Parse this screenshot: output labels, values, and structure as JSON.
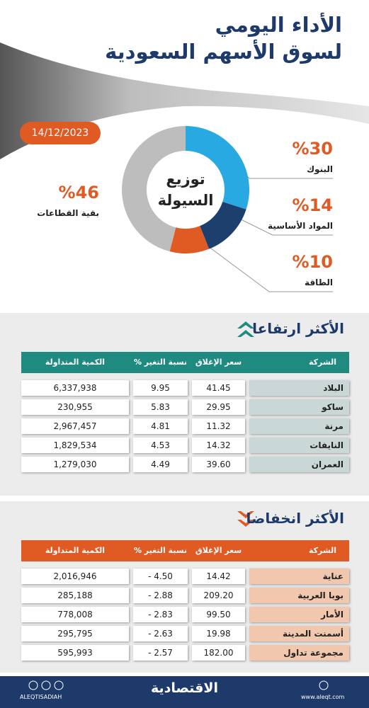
{
  "header": {
    "title_line1": "الأداء اليومي",
    "title_line2": "لسوق الأسهم السعودية",
    "date": "14/12/2023"
  },
  "chart_data": {
    "type": "pie",
    "title": "توزيع السيولة",
    "categories": [
      "البنوك",
      "المواد الأساسية",
      "الطاقة",
      "بقية القطاعات"
    ],
    "values": [
      30,
      14,
      10,
      46
    ],
    "value_labels": [
      "%30",
      "%14",
      "%10",
      "%46"
    ],
    "colors": [
      "#29a9e1",
      "#1d3f6e",
      "#e05a24",
      "#bdbdbd"
    ]
  },
  "rising": {
    "title": "الأكثر ارتفاعا",
    "header": [
      "الشركة",
      "سعر الإغلاق",
      "نسبة التغير %",
      "الكمية المتداولة"
    ],
    "rows": [
      [
        "البلاد",
        "41.45",
        "9.95",
        "6,337,938"
      ],
      [
        "ساكو",
        "29.95",
        "5.83",
        "230,955"
      ],
      [
        "مرنة",
        "11.32",
        "4.81",
        "2,967,457"
      ],
      [
        "النايفات",
        "14.32",
        "4.53",
        "1,829,534"
      ],
      [
        "العمران",
        "39.60",
        "4.49",
        "1,279,030"
      ]
    ]
  },
  "falling": {
    "title": "الأكثر انخفاضا",
    "header": [
      "الشركة",
      "سعر الإغلاق",
      "نسبة التغير %",
      "الكمية المتداولة"
    ],
    "rows": [
      [
        "عناية",
        "14.42",
        "- 4.50",
        "2,016,946"
      ],
      [
        "بوبا العربية",
        "209.20",
        "- 2.88",
        "285,188"
      ],
      [
        "الأمار",
        "99.50",
        "- 2.83",
        "778,008"
      ],
      [
        "أسمنت المدينة",
        "19.98",
        "- 2.63",
        "295,795"
      ],
      [
        "مجموعة تداول",
        "182.00",
        "- 2.57",
        "595,993"
      ]
    ]
  },
  "footer": {
    "logo": "الاقتصادية",
    "handle": "ALEQTISADIAH",
    "site": "www.aleqt.com"
  }
}
